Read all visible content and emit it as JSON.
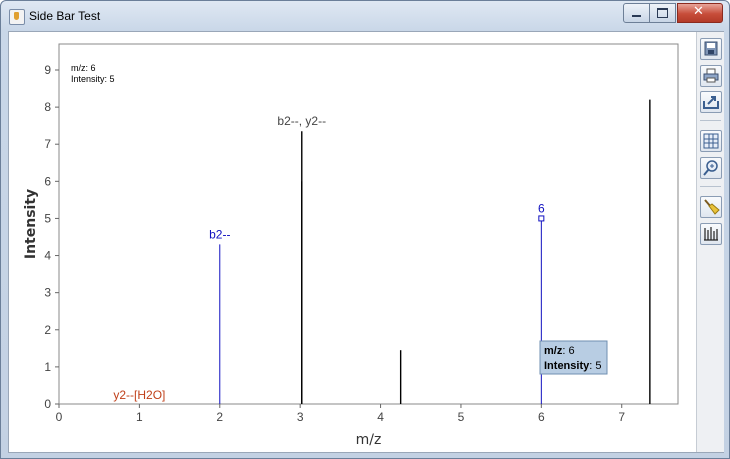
{
  "window": {
    "title": "Side Bar Test"
  },
  "toolbar": {
    "buttons": [
      {
        "icon": "save-icon"
      },
      {
        "icon": "print-icon"
      },
      {
        "icon": "export-icon"
      },
      {
        "icon": "grid-icon"
      },
      {
        "icon": "zoom-icon"
      },
      {
        "icon": "broom-icon"
      },
      {
        "icon": "peaks-icon"
      }
    ]
  },
  "info": {
    "mz_label": "m/z:",
    "mz_value": "6",
    "intensity_label": "Intensity:",
    "intensity_value": "5"
  },
  "tooltip": {
    "mz_label": "m/z",
    "mz_value": ": 6",
    "intensity_label": "Intensity",
    "intensity_value": ": 5"
  },
  "colors": {
    "annotated": "#1010c0",
    "unannotated": "#000000",
    "neutral_loss": "#c0401a",
    "combined": "#444444"
  },
  "chart_data": {
    "type": "bar",
    "xlabel": "m/z",
    "ylabel": "Intensity",
    "xlim": [
      0,
      7.7
    ],
    "ylim": [
      0,
      9.7
    ],
    "xticks": [
      "0",
      "1",
      "2",
      "3",
      "4",
      "5",
      "6",
      "7"
    ],
    "yticks": [
      "0",
      "1",
      "2",
      "3",
      "4",
      "5",
      "6",
      "7",
      "8",
      "9"
    ],
    "peaks": [
      {
        "x": 2.0,
        "y": 4.3,
        "color": "#1010c0"
      },
      {
        "x": 3.02,
        "y": 6.0,
        "color": "#000000"
      },
      {
        "x": 3.02,
        "y": 7.35,
        "color": "#000000"
      },
      {
        "x": 4.25,
        "y": 1.45,
        "color": "#000000"
      },
      {
        "x": 6.0,
        "y": 5.0,
        "color": "#1010c0",
        "selected": true
      },
      {
        "x": 7.35,
        "y": 8.2,
        "color": "#000000"
      }
    ],
    "annotations": [
      {
        "text": "b2--",
        "x": 2.0,
        "y": 4.3,
        "color": "#1010c0"
      },
      {
        "text": "b2--, y2--",
        "x": 3.02,
        "y": 7.35,
        "color": "#444444"
      },
      {
        "text": "6",
        "x": 6.0,
        "y": 5.0,
        "color": "#1010c0"
      },
      {
        "text": "y2--[H2O]",
        "x": 1.0,
        "y": 0.0,
        "color": "#c0401a"
      }
    ]
  }
}
